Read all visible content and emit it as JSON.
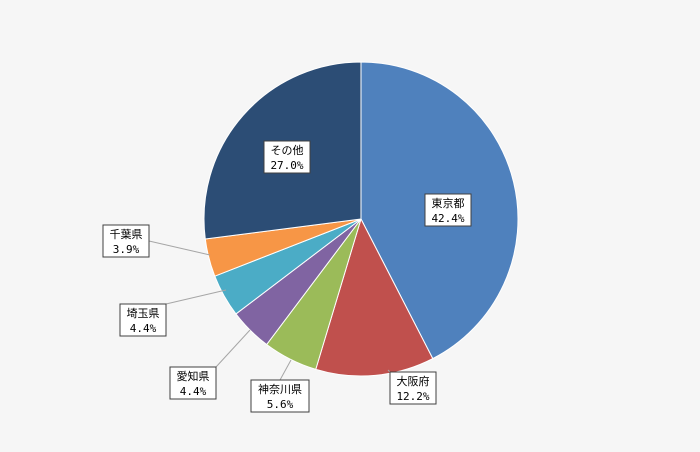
{
  "chart_data": {
    "type": "pie",
    "title": "",
    "start_angle_deg": 0,
    "direction": "clockwise",
    "slices": [
      {
        "label": "東京都",
        "value": 42.4,
        "value_label": "42.4%",
        "color": "#4f81bd"
      },
      {
        "label": "大阪府",
        "value": 12.2,
        "value_label": "12.2%",
        "color": "#c0504d"
      },
      {
        "label": "神奈川県",
        "value": 5.6,
        "value_label": "5.6%",
        "color": "#9bbb59"
      },
      {
        "label": "愛知県",
        "value": 4.4,
        "value_label": "4.4%",
        "color": "#8064a2"
      },
      {
        "label": "埼玉県",
        "value": 4.4,
        "value_label": "4.4%",
        "color": "#4bacc6"
      },
      {
        "label": "千葉県",
        "value": 3.9,
        "value_label": "3.9%",
        "color": "#f79646"
      },
      {
        "label": "その他",
        "value": 27.0,
        "value_label": "27.0%",
        "color": "#2c4d75"
      }
    ]
  }
}
